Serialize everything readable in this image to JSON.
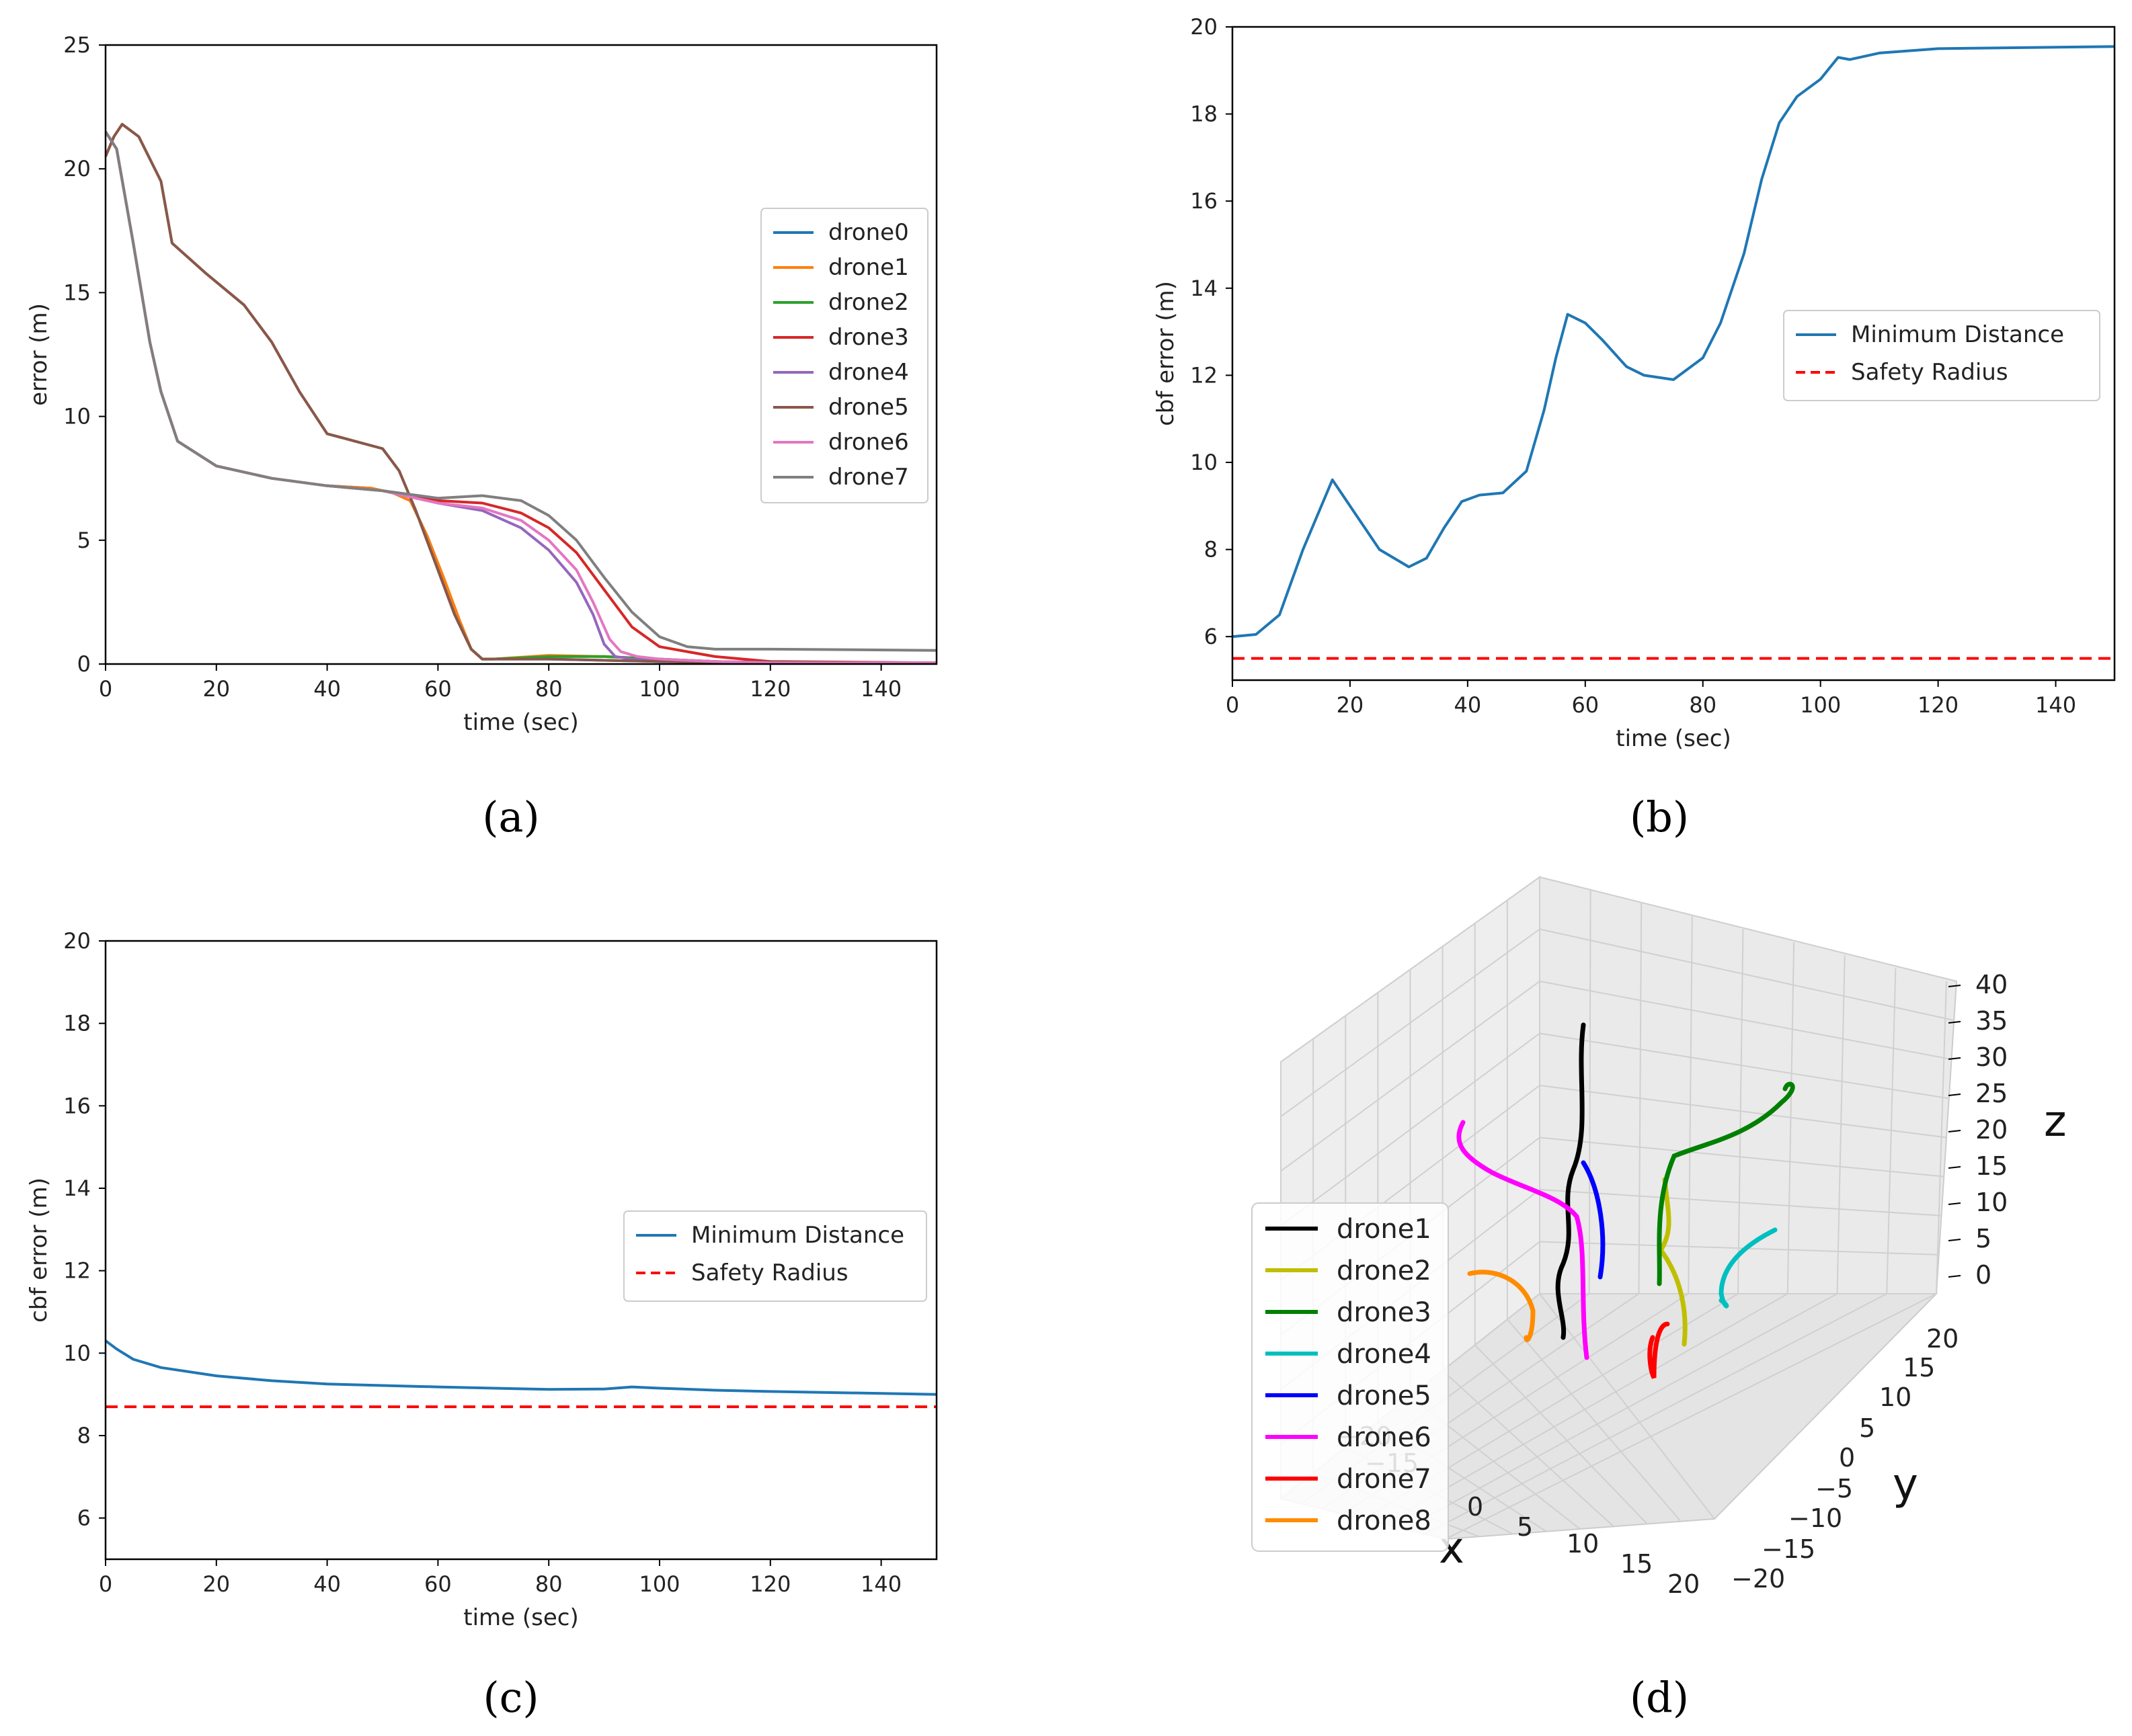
{
  "chart_data": [
    {
      "panel": "(a)",
      "type": "line",
      "xlabel": "time (sec)",
      "ylabel": "error (m)",
      "xlim": [
        0,
        150
      ],
      "ylim": [
        0,
        25
      ],
      "xticks": [
        "0",
        "20",
        "40",
        "60",
        "80",
        "100",
        "120",
        "140"
      ],
      "yticks": [
        "0",
        "5",
        "10",
        "15",
        "20",
        "25"
      ],
      "grid": false,
      "legend_position": "center-right",
      "series": [
        {
          "name": "drone0",
          "color": "#1f77b4",
          "x": [
            0,
            2,
            5,
            8,
            10,
            13,
            20,
            30,
            40,
            48,
            52,
            55,
            58,
            61,
            64,
            66,
            68,
            70,
            80,
            90,
            100,
            120,
            150
          ],
          "y": [
            21.5,
            20.8,
            17,
            13,
            11,
            9,
            8,
            7.5,
            7.2,
            7.1,
            6.9,
            6.6,
            5.2,
            3.5,
            1.7,
            0.6,
            0.2,
            0.2,
            0.2,
            0.15,
            0.1,
            0.05,
            0.05
          ]
        },
        {
          "name": "drone1",
          "color": "#ff7f0e",
          "x": [
            0,
            2,
            5,
            8,
            10,
            13,
            20,
            30,
            40,
            48,
            52,
            55,
            58,
            61,
            64,
            66,
            68,
            70,
            80,
            90,
            100,
            110,
            120,
            150
          ],
          "y": [
            21.5,
            20.8,
            17,
            13,
            11,
            9,
            8,
            7.5,
            7.2,
            7.1,
            6.9,
            6.6,
            5.2,
            3.5,
            1.7,
            0.6,
            0.2,
            0.2,
            0.35,
            0.3,
            0.2,
            0.1,
            0.05,
            0.05
          ]
        },
        {
          "name": "drone2",
          "color": "#2ca02c",
          "x": [
            0,
            1.5,
            3,
            6,
            10,
            12,
            18,
            25,
            30,
            35,
            40,
            45,
            50,
            53,
            56,
            60,
            63,
            66,
            68,
            70,
            80,
            90,
            100,
            110,
            120,
            150
          ],
          "y": [
            20.5,
            21.3,
            21.8,
            21.3,
            19.5,
            17,
            15.8,
            14.5,
            13,
            11,
            9.3,
            9,
            8.7,
            7.8,
            6.2,
            3.8,
            2,
            0.6,
            0.2,
            0.2,
            0.3,
            0.3,
            0.2,
            0.1,
            0.05,
            0.05
          ]
        },
        {
          "name": "drone3",
          "color": "#d62728",
          "x": [
            0,
            2,
            5,
            8,
            10,
            13,
            20,
            30,
            40,
            50,
            60,
            68,
            75,
            80,
            85,
            90,
            95,
            100,
            105,
            110,
            120,
            150
          ],
          "y": [
            21.5,
            20.8,
            17,
            13,
            11,
            9,
            8,
            7.5,
            7.2,
            7,
            6.6,
            6.5,
            6.1,
            5.5,
            4.5,
            3,
            1.5,
            0.7,
            0.5,
            0.3,
            0.1,
            0.05
          ]
        },
        {
          "name": "drone4",
          "color": "#9467bd",
          "x": [
            0,
            2,
            5,
            8,
            10,
            13,
            20,
            30,
            40,
            50,
            60,
            68,
            75,
            80,
            85,
            88,
            90,
            92,
            95,
            100,
            110,
            120,
            150
          ],
          "y": [
            21.5,
            20.8,
            17,
            13,
            11,
            9,
            8,
            7.5,
            7.2,
            7,
            6.5,
            6.2,
            5.5,
            4.6,
            3.3,
            2,
            0.8,
            0.3,
            0.2,
            0.1,
            0.05,
            0.05,
            0.05
          ]
        },
        {
          "name": "drone5",
          "color": "#8c564b",
          "x": [
            0,
            1.5,
            3,
            6,
            10,
            12,
            18,
            25,
            30,
            35,
            40,
            45,
            50,
            53,
            56,
            60,
            63,
            66,
            68,
            70,
            80,
            100,
            150
          ],
          "y": [
            20.5,
            21.3,
            21.8,
            21.3,
            19.5,
            17,
            15.8,
            14.5,
            13,
            11,
            9.3,
            9,
            8.7,
            7.8,
            6.2,
            3.8,
            2,
            0.6,
            0.2,
            0.2,
            0.2,
            0.1,
            0.05
          ]
        },
        {
          "name": "drone6",
          "color": "#e377c2",
          "x": [
            0,
            2,
            5,
            8,
            10,
            13,
            20,
            30,
            40,
            50,
            60,
            68,
            75,
            80,
            85,
            88,
            91,
            93,
            96,
            100,
            110,
            120,
            150
          ],
          "y": [
            21.5,
            20.8,
            17,
            13,
            11,
            9,
            8,
            7.5,
            7.2,
            7,
            6.5,
            6.3,
            5.8,
            5,
            3.8,
            2.5,
            1,
            0.5,
            0.3,
            0.2,
            0.1,
            0.05,
            0.05
          ]
        },
        {
          "name": "drone7",
          "color": "#7f7f7f",
          "x": [
            0,
            2,
            5,
            8,
            10,
            13,
            20,
            30,
            40,
            50,
            60,
            68,
            75,
            80,
            85,
            90,
            95,
            100,
            105,
            110,
            120,
            150
          ],
          "y": [
            21.5,
            20.8,
            17,
            13,
            11,
            9,
            8,
            7.5,
            7.2,
            7,
            6.7,
            6.8,
            6.6,
            6,
            5,
            3.5,
            2.1,
            1.1,
            0.7,
            0.6,
            0.6,
            0.55
          ]
        }
      ]
    },
    {
      "panel": "(b)",
      "type": "line",
      "xlabel": "time (sec)",
      "ylabel": "cbf error (m)",
      "xlim": [
        0,
        150
      ],
      "ylim": [
        5,
        20
      ],
      "xticks": [
        "0",
        "20",
        "40",
        "60",
        "80",
        "100",
        "120",
        "140"
      ],
      "yticks": [
        "6",
        "8",
        "10",
        "12",
        "14",
        "16",
        "18",
        "20"
      ],
      "grid": false,
      "legend_position": "center-right",
      "series": [
        {
          "name": "Minimum Distance",
          "color": "#1f77b4",
          "style": "solid",
          "x": [
            0,
            4,
            8,
            12,
            17,
            20,
            25,
            30,
            33,
            36,
            39,
            42,
            46,
            50,
            53,
            55,
            57,
            60,
            63,
            67,
            70,
            75,
            80,
            83,
            87,
            90,
            93,
            96,
            100,
            103,
            105,
            110,
            120,
            150
          ],
          "y": [
            6,
            6.05,
            6.5,
            8,
            9.6,
            9,
            8,
            7.6,
            7.8,
            8.5,
            9.1,
            9.25,
            9.3,
            9.8,
            11.2,
            12.4,
            13.4,
            13.2,
            12.8,
            12.2,
            12,
            11.9,
            12.4,
            13.2,
            14.8,
            16.5,
            17.8,
            18.4,
            18.8,
            19.3,
            19.25,
            19.4,
            19.5,
            19.55
          ]
        },
        {
          "name": "Safety Radius",
          "color": "#ff0000",
          "style": "dashed",
          "x": [
            0,
            150
          ],
          "y": [
            5.5,
            5.5
          ]
        }
      ]
    },
    {
      "panel": "(c)",
      "type": "line",
      "xlabel": "time (sec)",
      "ylabel": "cbf error (m)",
      "xlim": [
        0,
        150
      ],
      "ylim": [
        5,
        20
      ],
      "xticks": [
        "0",
        "20",
        "40",
        "60",
        "80",
        "100",
        "120",
        "140"
      ],
      "yticks": [
        "6",
        "8",
        "10",
        "12",
        "14",
        "16",
        "18",
        "20"
      ],
      "grid": false,
      "legend_position": "center-right",
      "series": [
        {
          "name": "Minimum Distance",
          "color": "#1f77b4",
          "style": "solid",
          "x": [
            0,
            2,
            5,
            10,
            20,
            30,
            40,
            60,
            80,
            90,
            95,
            100,
            110,
            120,
            150
          ],
          "y": [
            10.3,
            10.1,
            9.85,
            9.65,
            9.45,
            9.33,
            9.25,
            9.18,
            9.12,
            9.13,
            9.18,
            9.15,
            9.1,
            9.07,
            9.0
          ]
        },
        {
          "name": "Safety Radius",
          "color": "#ff0000",
          "style": "dashed",
          "x": [
            0,
            150
          ],
          "y": [
            8.7,
            8.7
          ]
        }
      ]
    },
    {
      "panel": "(d)",
      "type": "line3d",
      "xlabel": "x",
      "ylabel": "y",
      "zlabel": "z",
      "x_ticks": [
        "−20",
        "−15",
        "0",
        "5",
        "10",
        "15",
        "20"
      ],
      "y_ticks": [
        "20",
        "15",
        "10",
        "5",
        "0",
        "−5",
        "−10",
        "−15",
        "−20"
      ],
      "z_ticks": [
        "40",
        "35",
        "30",
        "25",
        "20",
        "15",
        "10",
        "5",
        "0"
      ],
      "legend_position": "lower-left",
      "series": [
        {
          "name": "drone1",
          "color": "#000000"
        },
        {
          "name": "drone2",
          "color": "#bfbf00"
        },
        {
          "name": "drone3",
          "color": "#008000"
        },
        {
          "name": "drone4",
          "color": "#00bfbf"
        },
        {
          "name": "drone5",
          "color": "#0000ff"
        },
        {
          "name": "drone6",
          "color": "#ff00ff"
        },
        {
          "name": "drone7",
          "color": "#ff0000"
        },
        {
          "name": "drone8",
          "color": "#ff8c00"
        }
      ]
    }
  ],
  "captions": [
    "(a)",
    "(b)",
    "(c)",
    "(d)"
  ]
}
